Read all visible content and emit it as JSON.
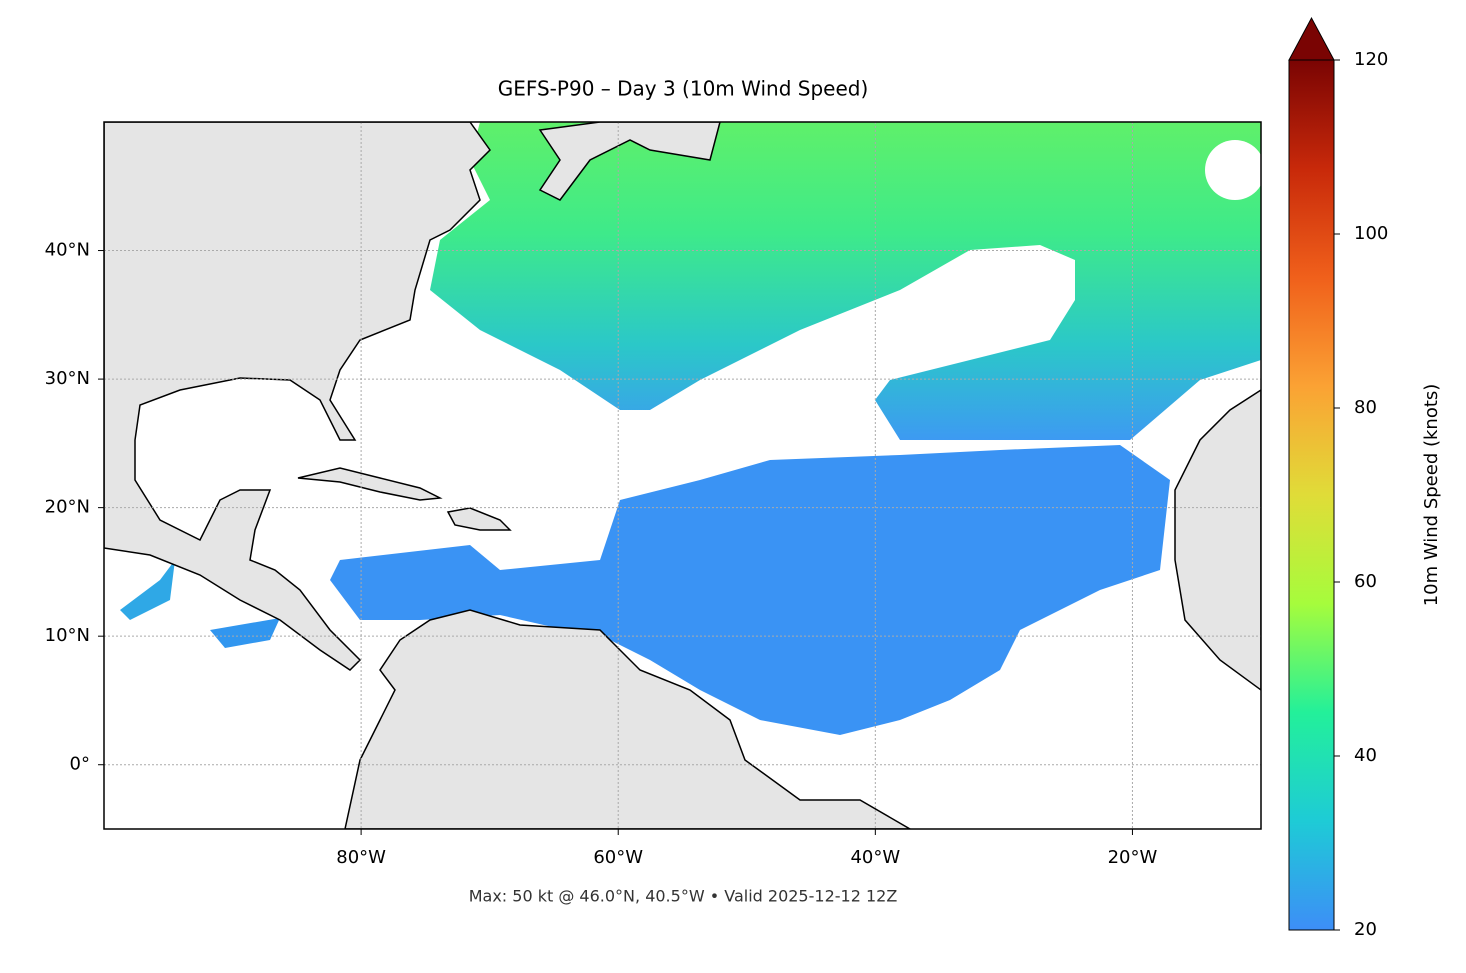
{
  "title": "GEFS-P90 – Day 3 (10m Wind Speed)",
  "map": {
    "xlim": [
      -100,
      -10
    ],
    "ylim": [
      -5,
      50
    ],
    "xticks": [
      {
        "value": -80,
        "label": "80°W"
      },
      {
        "value": -60,
        "label": "60°W"
      },
      {
        "value": -40,
        "label": "40°W"
      },
      {
        "value": -20,
        "label": "20°W"
      }
    ],
    "yticks": [
      {
        "value": 0,
        "label": "0°"
      },
      {
        "value": 10,
        "label": "10°N"
      },
      {
        "value": 20,
        "label": "20°N"
      },
      {
        "value": 30,
        "label": "30°N"
      },
      {
        "value": 40,
        "label": "40°N"
      }
    ],
    "grid": true
  },
  "colorbar": {
    "label": "10m Wind Speed (knots)",
    "lim": [
      20,
      120
    ],
    "ticks": [
      20,
      40,
      60,
      80,
      100,
      120
    ],
    "colors": [
      "#3d8ef7",
      "#1ecbd6",
      "#23f09a",
      "#a6fc3c",
      "#e0dc38",
      "#fba234",
      "#f0601b",
      "#c8290a",
      "#7a0403"
    ],
    "extend": "max"
  },
  "footer": "Max: 50 kt @ 46.0°N, 40.5°W • Valid 2025-12-12 12Z"
}
